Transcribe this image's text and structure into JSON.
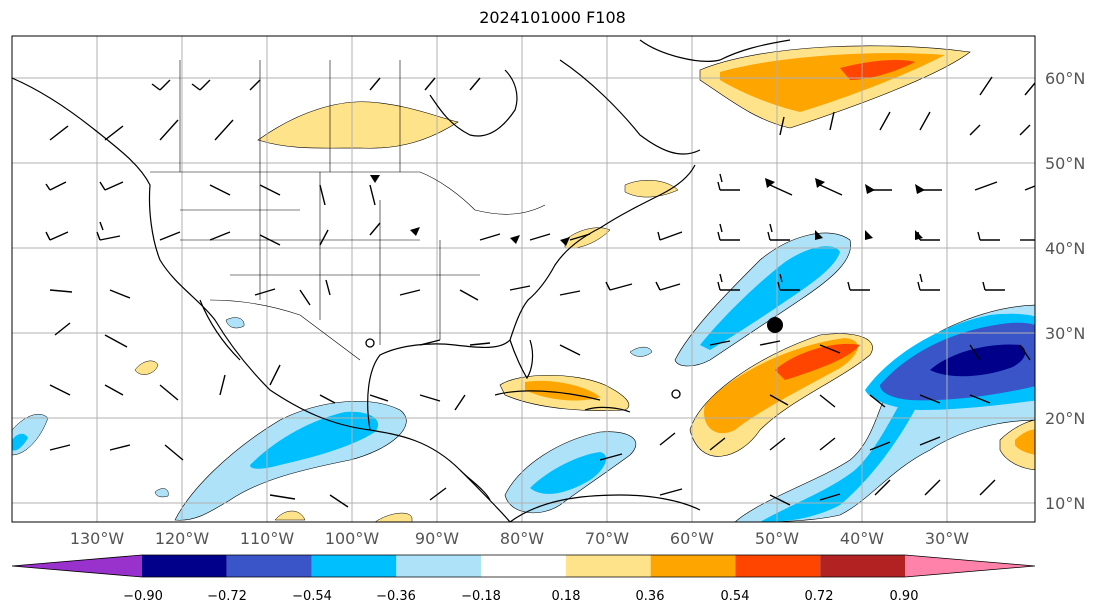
{
  "title": "2024101000 F108",
  "lon_labels": [
    "130°W",
    "120°W",
    "110°W",
    "100°W",
    "90°W",
    "80°W",
    "70°W",
    "60°W",
    "50°W",
    "40°W",
    "30°W"
  ],
  "lat_labels": [
    "60°N",
    "50°N",
    "40°N",
    "30°N",
    "20°N",
    "10°N"
  ],
  "colorbar": {
    "ticks": [
      "−0.90",
      "−0.72",
      "−0.54",
      "−0.36",
      "−0.18",
      "0.18",
      "0.36",
      "0.54",
      "0.72",
      "0.90"
    ],
    "colors": [
      "#9932cc",
      "#00008b",
      "#3a55c8",
      "#00bfff",
      "#aee2f8",
      "#ffffff",
      "#ffe38a",
      "#ffa500",
      "#ff4500",
      "#b22222",
      "#ff82ab"
    ]
  },
  "colors": {
    "grid": "#b0b0b0",
    "coast": "#000000",
    "pos_light": "#ffe38a",
    "pos_mid": "#ffa500",
    "pos_strong": "#ff4500",
    "neg_light": "#aee2f8",
    "neg_mid": "#00bfff",
    "neg_strong": "#3a55c8",
    "neg_xstrong": "#00008b"
  }
}
